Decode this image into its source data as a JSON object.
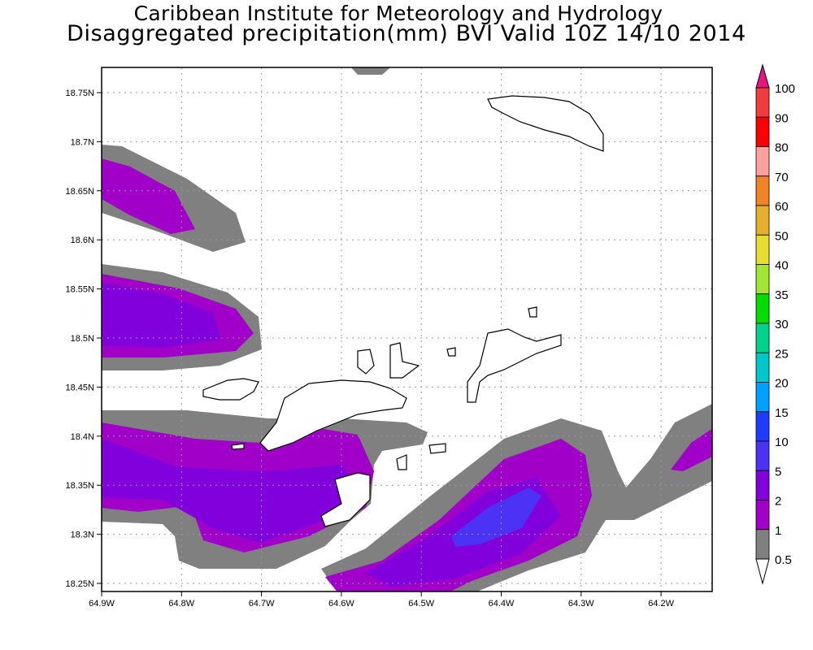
{
  "header": {
    "institute": "Caribbean Institute for Meteorology and Hydrology",
    "product": "Disaggregated precipitation(mm) BVI Valid 10Z 14/10 2014"
  },
  "map": {
    "region": "BVI",
    "lon_labels": [
      "64.9W",
      "64.8W",
      "64.7W",
      "64.6W",
      "64.5W",
      "64.4W",
      "64.3W",
      "64.2W"
    ],
    "lat_labels": [
      "18.75N",
      "18.7N",
      "18.65N",
      "18.6N",
      "18.55N",
      "18.5N",
      "18.45N",
      "18.4N",
      "18.35N",
      "18.3N",
      "18.25N"
    ]
  },
  "legend": {
    "labels": [
      "100",
      "90",
      "80",
      "70",
      "60",
      "50",
      "40",
      "35",
      "30",
      "25",
      "20",
      "15",
      "10",
      "5",
      "2",
      "1",
      "0.5"
    ],
    "colors": [
      "#f03c3c",
      "#fa0000",
      "#ffa0a0",
      "#f08228",
      "#e6af2d",
      "#e6dc32",
      "#a0e632",
      "#00dc00",
      "#00d28c",
      "#00c8c8",
      "#00a0ff",
      "#1e3cff",
      "#4b32f5",
      "#8200dc",
      "#a000c8",
      "#808080"
    ],
    "top_arrow_color": "#e6147d",
    "bottom_arrow_color": "#ffffff"
  }
}
